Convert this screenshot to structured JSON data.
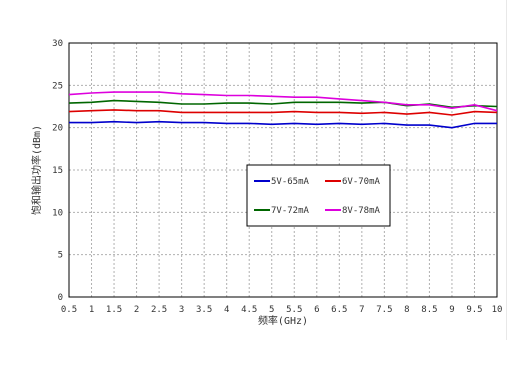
{
  "chart_data": {
    "type": "line",
    "title": "",
    "xlabel": "频率(GHz)",
    "ylabel": "饱和输出功率(dBm)",
    "xlim": [
      0.5,
      10
    ],
    "ylim": [
      0,
      30
    ],
    "grid": true,
    "legend_position": "center-right, boxed, 2x2",
    "x_tick_labels": [
      "0.5",
      "1",
      "1.5",
      "2",
      "2.5",
      "3",
      "3.5",
      "4",
      "4.5",
      "5",
      "5.5",
      "6",
      "6.5",
      "7",
      "7.5",
      "8",
      "8.5",
      "9",
      "9.5",
      "10"
    ],
    "y_tick_labels": [
      "0",
      "5",
      "10",
      "15",
      "20",
      "25",
      "30"
    ],
    "x": [
      0.5,
      1,
      1.5,
      2,
      2.5,
      3,
      3.5,
      4,
      4.5,
      5,
      5.5,
      6,
      6.5,
      7,
      7.5,
      8,
      8.5,
      9,
      9.5,
      10
    ],
    "series": [
      {
        "name": "5V-65mA",
        "color": "#0000cc",
        "values": [
          20.6,
          20.6,
          20.7,
          20.6,
          20.7,
          20.6,
          20.6,
          20.5,
          20.5,
          20.4,
          20.5,
          20.4,
          20.5,
          20.4,
          20.5,
          20.3,
          20.3,
          20.0,
          20.5,
          20.5
        ]
      },
      {
        "name": "6V-70mA",
        "color": "#dd0000",
        "values": [
          21.9,
          22.0,
          22.1,
          22.0,
          22.0,
          21.8,
          21.8,
          21.8,
          21.8,
          21.8,
          21.9,
          21.8,
          21.8,
          21.7,
          21.8,
          21.6,
          21.8,
          21.5,
          21.9,
          21.8
        ]
      },
      {
        "name": "7V-72mA",
        "color": "#006600",
        "values": [
          22.9,
          23.0,
          23.2,
          23.1,
          23.0,
          22.8,
          22.8,
          22.9,
          22.9,
          22.8,
          23.0,
          23.0,
          23.0,
          22.9,
          23.0,
          22.6,
          22.8,
          22.4,
          22.6,
          22.5
        ]
      },
      {
        "name": "8V-78mA",
        "color": "#dd00dd",
        "values": [
          23.9,
          24.1,
          24.2,
          24.2,
          24.2,
          24.0,
          23.9,
          23.8,
          23.8,
          23.7,
          23.6,
          23.6,
          23.4,
          23.2,
          23.0,
          22.7,
          22.7,
          22.3,
          22.7,
          22.0
        ]
      }
    ]
  }
}
